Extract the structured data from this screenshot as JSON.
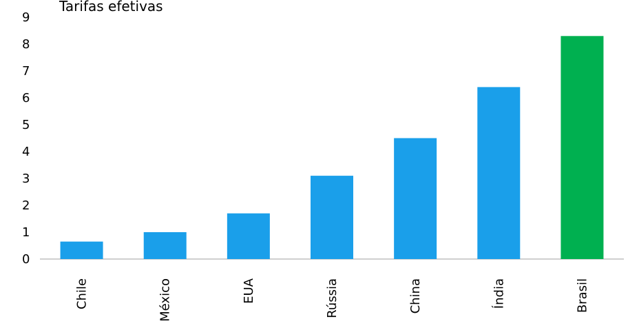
{
  "chart_data": {
    "type": "bar",
    "title": "Tarifas efetivas",
    "xlabel": "",
    "ylabel": "",
    "categories": [
      "Chile",
      "México",
      "EUA",
      "Rússia",
      "China",
      "Índia",
      "Brasil"
    ],
    "values": [
      0.65,
      1.0,
      1.7,
      3.1,
      4.5,
      6.4,
      8.3
    ],
    "highlight_category": "Brasil",
    "ylim": [
      0,
      9
    ],
    "yticks": [
      0,
      1,
      2,
      3,
      4,
      5,
      6,
      7,
      8,
      9
    ],
    "grid": false,
    "legend": "none",
    "colors": {
      "default": "#1a9fea",
      "highlight": "#00b050"
    }
  }
}
